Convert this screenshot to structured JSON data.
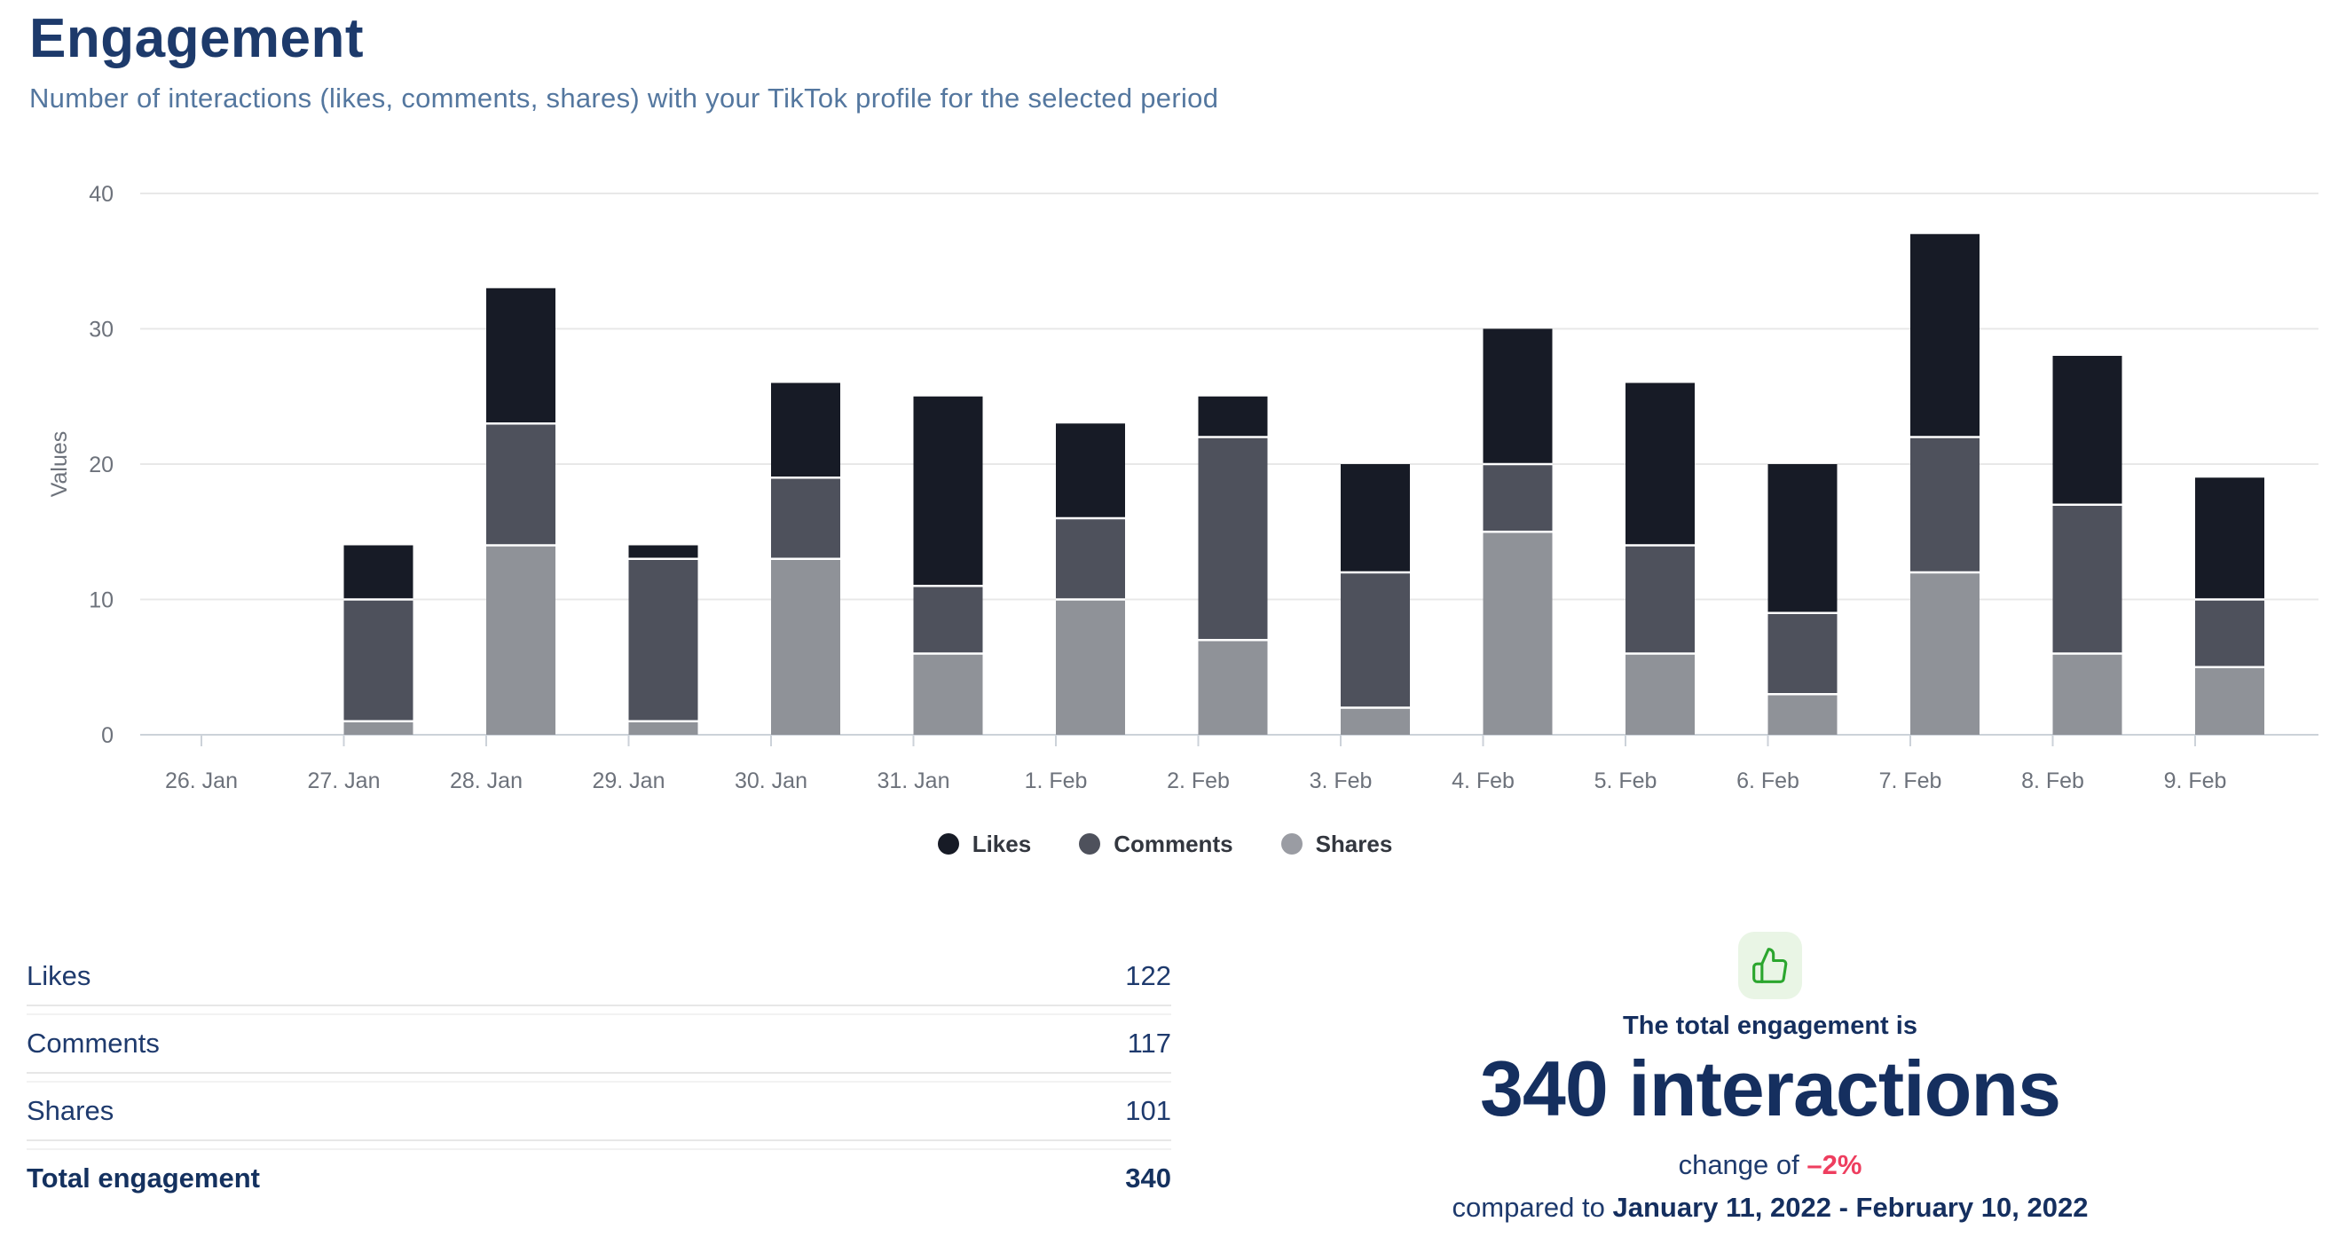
{
  "page": {
    "background": "#ffffff"
  },
  "header": {
    "title": "Engagement",
    "subtitle": "Number of interactions (likes, comments, shares) with your TikTok profile for the selected period"
  },
  "chart_data": {
    "type": "bar",
    "stacked": true,
    "ylabel": "Values",
    "categories": [
      "26. Jan",
      "27. Jan",
      "28. Jan",
      "29. Jan",
      "30. Jan",
      "31. Jan",
      "1. Feb",
      "2. Feb",
      "3. Feb",
      "4. Feb",
      "5. Feb",
      "6. Feb",
      "7. Feb",
      "8. Feb",
      "9. Feb"
    ],
    "series": [
      {
        "name": "Likes",
        "color": "#171b26",
        "values": [
          0,
          4,
          10,
          1,
          7,
          14,
          7,
          3,
          8,
          10,
          12,
          11,
          15,
          11,
          9
        ]
      },
      {
        "name": "Comments",
        "color": "#4e515c",
        "values": [
          0,
          9,
          9,
          12,
          6,
          5,
          6,
          15,
          10,
          5,
          8,
          6,
          10,
          11,
          5
        ]
      },
      {
        "name": "Shares",
        "color": "#8f9298",
        "values": [
          0,
          1,
          14,
          1,
          13,
          6,
          10,
          7,
          2,
          15,
          6,
          3,
          12,
          6,
          5
        ]
      }
    ],
    "stack_order_bottom_to_top": [
      "Shares",
      "Comments",
      "Likes"
    ],
    "totals_per_category": [
      0,
      14,
      33,
      14,
      26,
      25,
      23,
      25,
      20,
      30,
      26,
      20,
      37,
      28,
      19
    ],
    "ylim": [
      0,
      40
    ],
    "yticks": [
      0,
      10,
      20,
      30,
      40
    ],
    "grid": true,
    "legend_position": "bottom",
    "axis_label_color": "#6d727b",
    "grid_color": "#e8e8e8",
    "axis_line_color": "#ccd2d9"
  },
  "legend": {
    "items": [
      {
        "label": "Likes",
        "color": "#171b26"
      },
      {
        "label": "Comments",
        "color": "#4e515c"
      },
      {
        "label": "Shares",
        "color": "#9a9ca3"
      }
    ]
  },
  "summary_table": {
    "rows": [
      {
        "label": "Likes",
        "value": "122"
      },
      {
        "label": "Comments",
        "value": "117"
      },
      {
        "label": "Shares",
        "value": "101"
      },
      {
        "label": "Total engagement",
        "value": "340"
      }
    ]
  },
  "total_panel": {
    "icon": "thumbs-up-icon",
    "icon_color": "#2ba62e",
    "icon_bg": "#e9f5e5",
    "heading": "The total engagement is",
    "total_text": "340 interactions",
    "change_prefix": "change of ",
    "change_value": "–2%",
    "change_color": "#ee3e5f",
    "compared_prefix": "compared to ",
    "compared_range": "January 11, 2022 - February 10, 2022"
  }
}
